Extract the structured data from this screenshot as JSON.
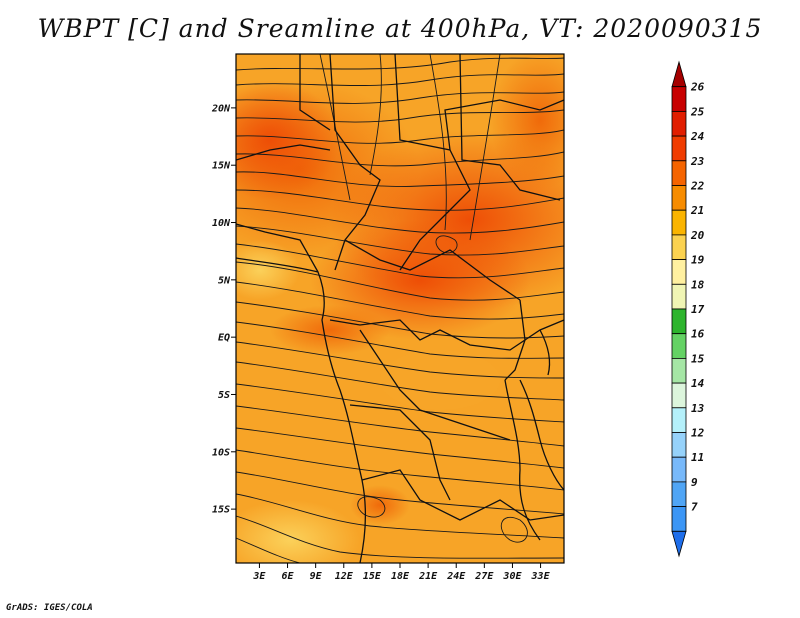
{
  "title": "WBPT [C] and Sreamline at 400hPa, VT: 2020090315",
  "credit": "GrADS: IGES/COLA",
  "map": {
    "lat_labels": [
      "20N",
      "15N",
      "10N",
      "5N",
      "EQ",
      "5S",
      "10S",
      "15S"
    ],
    "lat_values": [
      20,
      15,
      10,
      5,
      0,
      -5,
      -10,
      -15
    ],
    "lon_labels": [
      "3E",
      "6E",
      "9E",
      "12E",
      "15E",
      "18E",
      "21E",
      "24E",
      "27E",
      "30E",
      "33E"
    ],
    "lon_values": [
      3,
      6,
      9,
      12,
      15,
      18,
      21,
      24,
      27,
      30,
      33
    ],
    "lon_range": [
      0.5,
      35.5
    ],
    "lat_range": [
      -19.7,
      24.7
    ]
  },
  "colorbar": {
    "labels": [
      "26",
      "25",
      "24",
      "23",
      "22",
      "21",
      "20",
      "19",
      "18",
      "17",
      "16",
      "15",
      "14",
      "13",
      "12",
      "11",
      "9",
      "7"
    ],
    "colors": [
      "#a50000",
      "#c80000",
      "#e11e00",
      "#f03c00",
      "#f56400",
      "#f78c00",
      "#fab400",
      "#fbd250",
      "#fff0a0",
      "#f0f5b4",
      "#2db42d",
      "#64d264",
      "#a5e6a5",
      "#dcf5dc",
      "#b4f0fa",
      "#96d2fa",
      "#78b9fa",
      "#50a5f5",
      "#3c96f5",
      "#1e6eeb"
    ],
    "colors_legend": "top to bottom"
  }
}
